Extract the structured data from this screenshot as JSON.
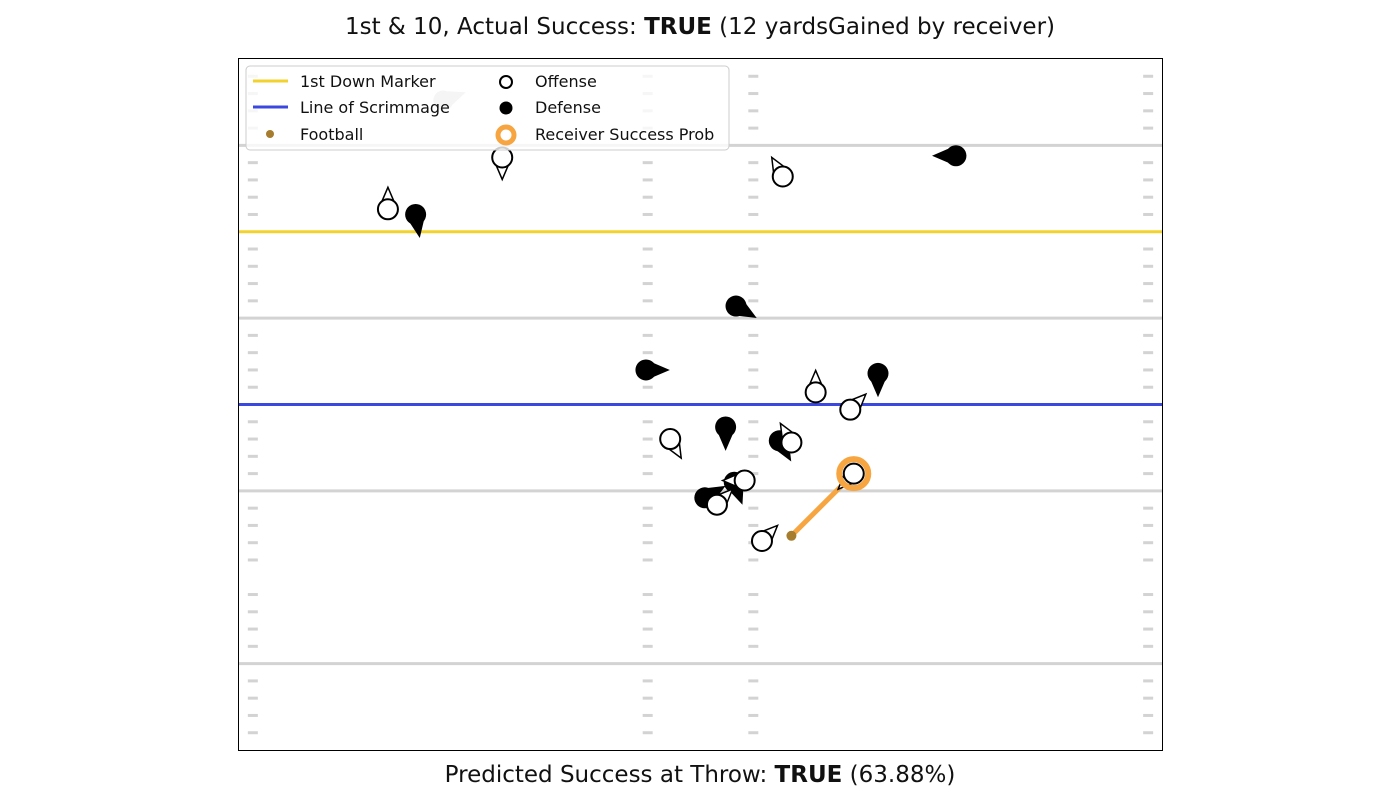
{
  "header": {
    "prefix": "1st & 10, Actual Success: ",
    "success": "TRUE",
    "suffix": " (12 yardsGained by receiver)"
  },
  "footer": {
    "prefix": "Predicted Success at Throw: ",
    "prediction": "TRUE",
    "suffix": " (63.88%)"
  },
  "legend": {
    "first_down": "1st Down Marker",
    "scrimmage": "Line of Scrimmage",
    "football": "Football",
    "offense": "Offense",
    "defense": "Defense",
    "receiver": "Receiver Success Prob"
  },
  "colors": {
    "first_down": "#f2d32e",
    "scrimmage": "#3b48e0",
    "football": "#a67c2e",
    "receiver": "#f6a540",
    "yard_line": "#d3d3d3",
    "ghost": "#cccccc"
  },
  "chart_data": {
    "type": "scatter",
    "x_range": [
      0,
      53.3
    ],
    "y_range": [
      0,
      40
    ],
    "yard_lines": [
      5,
      15,
      25,
      35
    ],
    "hash_columns": [
      0.8,
      23.6,
      29.7,
      52.5
    ],
    "first_down_marker_y": 30,
    "line_of_scrimmage_y": 20,
    "football": {
      "x": 31.9,
      "y": 12.4
    },
    "receiver": {
      "x": 35.5,
      "y": 16.0,
      "dir": 225
    },
    "offense": [
      {
        "x": 8.6,
        "y": 31.3,
        "dir": 0
      },
      {
        "x": 15.2,
        "y": 34.3,
        "dir": 180
      },
      {
        "x": 31.4,
        "y": 33.2,
        "dir": 330
      },
      {
        "x": 33.3,
        "y": 20.7,
        "dir": 0
      },
      {
        "x": 35.3,
        "y": 19.7,
        "dir": 45
      },
      {
        "x": 24.9,
        "y": 18.0,
        "dir": 150
      },
      {
        "x": 31.9,
        "y": 17.8,
        "dir": 330
      },
      {
        "x": 29.2,
        "y": 15.6,
        "dir": 270
      },
      {
        "x": 27.6,
        "y": 14.2,
        "dir": 45
      },
      {
        "x": 30.2,
        "y": 12.1,
        "dir": 45
      }
    ],
    "defense": [
      {
        "x": 10.2,
        "y": 31.0,
        "dir": 170
      },
      {
        "x": 41.4,
        "y": 34.4,
        "dir": 270
      },
      {
        "x": 28.7,
        "y": 25.7,
        "dir": 120
      },
      {
        "x": 23.5,
        "y": 22.0,
        "dir": 90
      },
      {
        "x": 36.9,
        "y": 21.8,
        "dir": 180
      },
      {
        "x": 28.1,
        "y": 18.7,
        "dir": 180
      },
      {
        "x": 31.2,
        "y": 17.9,
        "dir": 150
      },
      {
        "x": 28.6,
        "y": 15.5,
        "dir": 160
      },
      {
        "x": 26.9,
        "y": 14.6,
        "dir": 60
      }
    ],
    "ghost": [
      {
        "x": 11.8,
        "y": 37.6,
        "dir": 70
      }
    ]
  }
}
